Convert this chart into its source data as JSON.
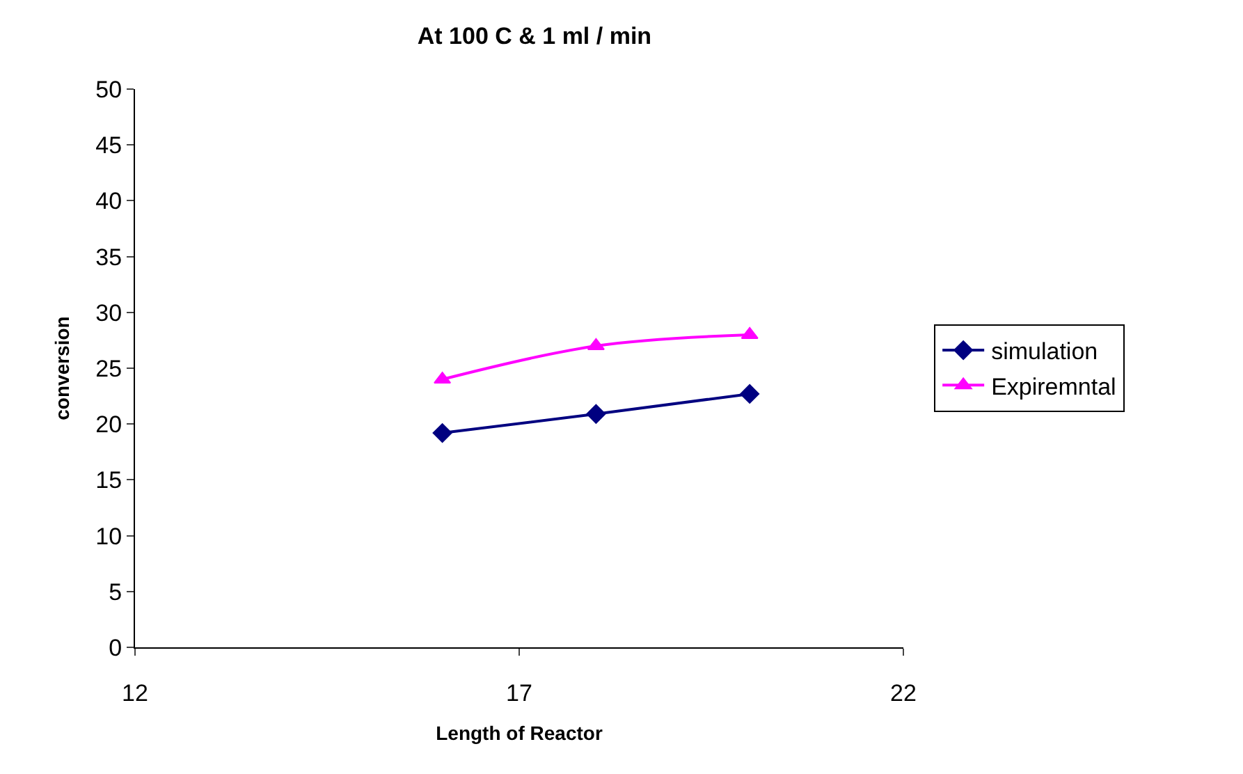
{
  "chart_data": {
    "type": "line",
    "title": "At 100 C & 1 ml / min",
    "xlabel": "Length of Reactor",
    "ylabel": "conversion",
    "x": [
      16,
      18,
      20
    ],
    "series": [
      {
        "name": "simulation",
        "color": "#000080",
        "marker": "diamond",
        "values": [
          19.2,
          20.9,
          22.7
        ]
      },
      {
        "name": "Expiremntal",
        "color": "#ff00ff",
        "marker": "triangle",
        "values": [
          24,
          27,
          28
        ]
      }
    ],
    "xlim": [
      12,
      22
    ],
    "xticks": [
      12,
      17,
      22
    ],
    "ylim": [
      0,
      50
    ],
    "yticks": [
      0,
      5,
      10,
      15,
      20,
      25,
      30,
      35,
      40,
      45,
      50
    ],
    "grid": false,
    "legend": "right",
    "line_style": "solid"
  }
}
